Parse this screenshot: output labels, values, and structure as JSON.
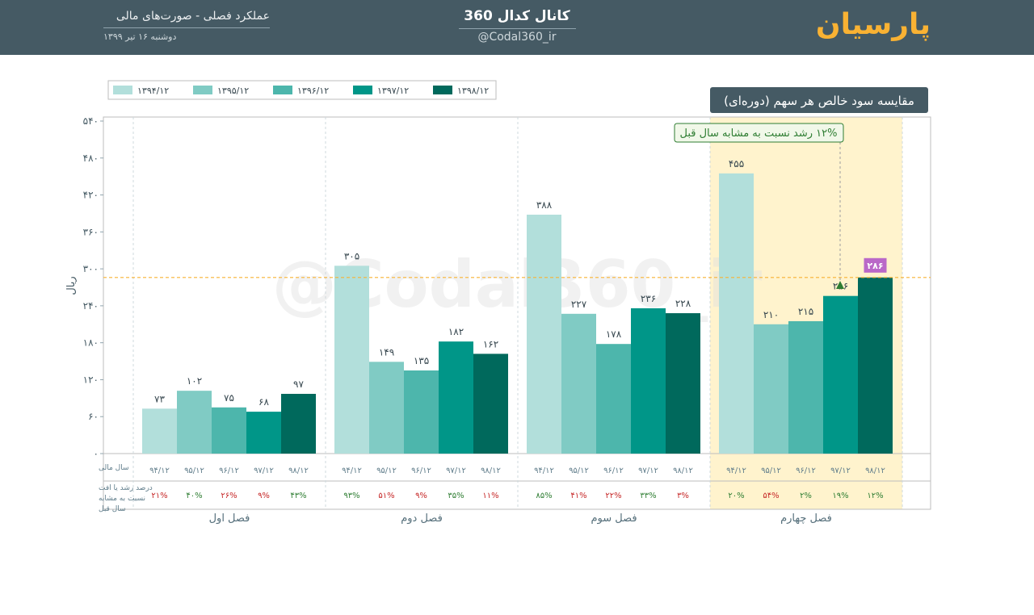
{
  "header": {
    "subtitle": "عملکرد فصلی - صورت‌های مالی",
    "date": "دوشنبه ۱۶ تیر ۱۳۹۹",
    "channel": "کانال کدال 360",
    "handle": "@Codal360_ir",
    "brand": "پارسیان"
  },
  "colors": {
    "header_bg": "#455a64",
    "brand": "#f9b233",
    "series": [
      "#b2dfdb",
      "#80cbc4",
      "#4db6ac",
      "#009688",
      "#00695c"
    ],
    "highlight": "#fff3cd",
    "growth_positive": "#2e7d32",
    "growth_negative": "#c62828",
    "marker": "#ba68c8"
  },
  "chart_data": {
    "type": "bar",
    "title": "مقایسه سود خالص هر سهم (دوره‌ای)",
    "ylabel": "ریال",
    "ylim": [
      0,
      540
    ],
    "yticks": [
      0,
      60,
      120,
      180,
      240,
      300,
      360,
      420,
      480,
      540
    ],
    "ytick_labels": [
      "۰",
      "۶۰",
      "۱۲۰",
      "۱۸۰",
      "۲۴۰",
      "۳۰۰",
      "۳۶۰",
      "۴۲۰",
      "۴۸۰",
      "۵۴۰"
    ],
    "grid": false,
    "legend_position": "top-left",
    "categories": [
      "فصل اول",
      "فصل دوم",
      "فصل سوم",
      "فصل چهارم"
    ],
    "series": [
      {
        "name": "۱۳۹۴/۱۲",
        "short": "۹۴/۱۲",
        "values": [
          73,
          305,
          388,
          455
        ],
        "value_labels": [
          "۷۳",
          "۳۰۵",
          "۳۸۸",
          "۴۵۵"
        ]
      },
      {
        "name": "۱۳۹۵/۱۲",
        "short": "۹۵/۱۲",
        "values": [
          102,
          149,
          227,
          210
        ],
        "value_labels": [
          "۱۰۲",
          "۱۴۹",
          "۲۲۷",
          "۲۱۰"
        ]
      },
      {
        "name": "۱۳۹۶/۱۲",
        "short": "۹۶/۱۲",
        "values": [
          75,
          135,
          178,
          215
        ],
        "value_labels": [
          "۷۵",
          "۱۳۵",
          "۱۷۸",
          "۲۱۵"
        ]
      },
      {
        "name": "۱۳۹۷/۱۲",
        "short": "۹۷/۱۲",
        "values": [
          68,
          182,
          236,
          256
        ],
        "value_labels": [
          "۶۸",
          "۱۸۲",
          "۲۳۶",
          "۲۵۶"
        ]
      },
      {
        "name": "۱۳۹۸/۱۲",
        "short": "۹۸/۱۲",
        "values": [
          97,
          162,
          228,
          286
        ],
        "value_labels": [
          "۹۷",
          "۱۶۲",
          "۲۲۸",
          "۲۸۶"
        ]
      }
    ],
    "growth": [
      [
        {
          "label": "۲۱%",
          "sign": "neg"
        },
        {
          "label": "۴۰%",
          "sign": "pos"
        },
        {
          "label": "۲۶%",
          "sign": "neg"
        },
        {
          "label": "۹%",
          "sign": "neg"
        },
        {
          "label": "۴۳%",
          "sign": "pos"
        }
      ],
      [
        {
          "label": "۹۳%",
          "sign": "pos"
        },
        {
          "label": "۵۱%",
          "sign": "neg"
        },
        {
          "label": "۹%",
          "sign": "neg"
        },
        {
          "label": "۳۵%",
          "sign": "pos"
        },
        {
          "label": "۱۱%",
          "sign": "neg"
        }
      ],
      [
        {
          "label": "۸۵%",
          "sign": "pos"
        },
        {
          "label": "۴۱%",
          "sign": "neg"
        },
        {
          "label": "۲۲%",
          "sign": "neg"
        },
        {
          "label": "۳۳%",
          "sign": "pos"
        },
        {
          "label": "۳%",
          "sign": "neg"
        }
      ],
      [
        {
          "label": "۲۰%",
          "sign": "pos"
        },
        {
          "label": "۵۴%",
          "sign": "neg"
        },
        {
          "label": "۲%",
          "sign": "pos"
        },
        {
          "label": "۱۹%",
          "sign": "pos"
        },
        {
          "label": "۱۲%",
          "sign": "pos"
        }
      ]
    ],
    "row_labels": {
      "fiscal_year": "سال مالی",
      "growth_line1": "درصد رشد یا افت",
      "growth_line2": "نسبت به مشابه",
      "growth_line3": "سال قبل"
    },
    "highlight_category": 3,
    "reference_value": 286,
    "reference_label": "۲۸۶",
    "annotation": "۱۲% رشد نسبت به مشابه سال قبل",
    "watermark": "@Codal360_ir"
  }
}
